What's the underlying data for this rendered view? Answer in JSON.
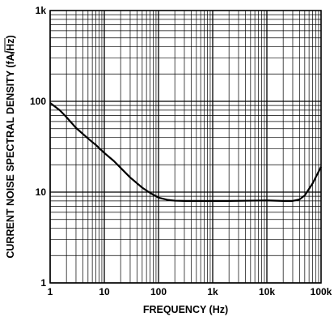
{
  "chart_data": {
    "type": "line",
    "title": "",
    "xlabel": "FREQUENCY (Hz)",
    "ylabel_prefix": "CURRENT NOISE SPECTRAL DENSITY (fA/",
    "ylabel_sqrt": "Hz",
    "ylabel_suffix": ")",
    "x_scale": "log",
    "y_scale": "log",
    "xlim": [
      1,
      100000
    ],
    "ylim": [
      1,
      1000
    ],
    "x_ticks": [
      {
        "value": 1,
        "label": "1"
      },
      {
        "value": 10,
        "label": "10"
      },
      {
        "value": 100,
        "label": "100"
      },
      {
        "value": 1000,
        "label": "1k"
      },
      {
        "value": 10000,
        "label": "10k"
      },
      {
        "value": 100000,
        "label": "100k"
      }
    ],
    "y_ticks": [
      {
        "value": 1,
        "label": "1"
      },
      {
        "value": 10,
        "label": "10"
      },
      {
        "value": 100,
        "label": "100"
      },
      {
        "value": 1000,
        "label": "1k"
      }
    ],
    "grid": true,
    "line_color": "#000000",
    "series": [
      {
        "x": [
          1,
          1.5,
          2,
          3,
          5,
          7,
          10,
          15,
          20,
          30,
          50,
          70,
          100,
          150,
          200,
          300,
          500,
          700,
          1000,
          2000,
          5000,
          10000,
          20000,
          30000,
          40000,
          50000,
          70000,
          100000
        ],
        "values": [
          96,
          80,
          67,
          51,
          39,
          33,
          27,
          22,
          18.5,
          14.5,
          11.2,
          9.8,
          8.7,
          8.2,
          8.05,
          8.0,
          8.0,
          8.0,
          8.0,
          8.0,
          8.05,
          8.1,
          8.0,
          8.0,
          8.3,
          9.2,
          12.5,
          19
        ]
      }
    ]
  }
}
